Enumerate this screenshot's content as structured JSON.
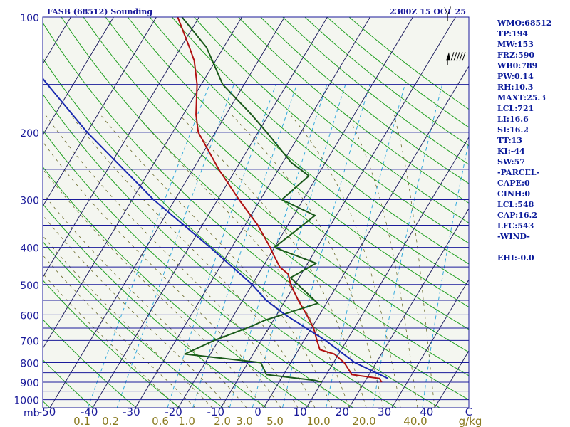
{
  "header": {
    "station_title": "FASB (68512) Sounding",
    "valid_time": "2300Z 15 OCT 25"
  },
  "stats": [
    {
      "label": "WMO:68512"
    },
    {
      "label": "TP:194"
    },
    {
      "label": "MW:153"
    },
    {
      "label": "FRZ:590"
    },
    {
      "label": "WB0:789"
    },
    {
      "label": "PW:0.14"
    },
    {
      "label": "RH:10.3"
    },
    {
      "label": "MAXT:25.3"
    },
    {
      "label": "LCL:721"
    },
    {
      "label": "LI:16.6"
    },
    {
      "label": "SI:16.2"
    },
    {
      "label": "TT:13"
    },
    {
      "label": "KI:-44"
    },
    {
      "label": "SW:57"
    },
    {
      "label": "-PARCEL-"
    },
    {
      "label": "CAPE:0"
    },
    {
      "label": "CINH:0"
    },
    {
      "label": "LCL:548"
    },
    {
      "label": "CAP:16.2"
    },
    {
      "label": "LFC:543"
    },
    {
      "label": "-WIND-"
    },
    {
      "label": ""
    },
    {
      "label": "EHI:-0.0"
    }
  ],
  "colors": {
    "background": "#f4f6f0",
    "isobar": "#1a1a9a",
    "isotherm": "#202060",
    "dry_adiabat": "#22a022",
    "moist_adiabat": "#6a6a2a",
    "mixing_ratio": "#33aadd",
    "temperature": "#b01010",
    "dewpoint": "#1a5a1a",
    "parcel": "#1a2ab0",
    "axis_text": "#1a1a9a",
    "mixing_text": "#8a7a20"
  },
  "chart_data": {
    "type": "line",
    "skew_t": true,
    "ylabel": "mb",
    "ylim": [
      1050,
      100
    ],
    "y_scale": "log",
    "xlim": [
      -50,
      50
    ],
    "pressure_ticks": [
      "100",
      "200",
      "300",
      "400",
      "500",
      "600",
      "700",
      "800",
      "900",
      "1000"
    ],
    "temperature_ticks": [
      "-50",
      "-40",
      "-30",
      "-20",
      "-10",
      "0",
      "10",
      "20",
      "30",
      "40",
      "C"
    ],
    "mixing_ratio_unit": "g/kg",
    "mixing_ratio_ticks": [
      {
        "label": "0.1",
        "value": 0.1
      },
      {
        "label": "0.2",
        "value": 0.2
      },
      {
        "label": "0.6",
        "value": 0.6
      },
      {
        "label": "1.0",
        "value": 1.0
      },
      {
        "label": "2.0",
        "value": 2.0
      },
      {
        "label": "3.0",
        "value": 3.0
      },
      {
        "label": "5.0",
        "value": 5.0
      },
      {
        "label": "10.0",
        "value": 10.0
      },
      {
        "label": "20.0",
        "value": 20.0
      },
      {
        "label": "40.0",
        "value": 40.0
      }
    ],
    "isobars": [
      100,
      150,
      200,
      250,
      300,
      350,
      400,
      450,
      500,
      550,
      600,
      650,
      700,
      750,
      800,
      850,
      900,
      950,
      1000,
      1050
    ],
    "series": [
      {
        "role": "temperature",
        "points": [
          {
            "p": 900,
            "t": 24.0
          },
          {
            "p": 880,
            "t": 23.0
          },
          {
            "p": 860,
            "t": 16.0
          },
          {
            "p": 800,
            "t": 12.5
          },
          {
            "p": 760,
            "t": 9.0
          },
          {
            "p": 740,
            "t": 5.0
          },
          {
            "p": 700,
            "t": 3.0
          },
          {
            "p": 650,
            "t": 0.5
          },
          {
            "p": 600,
            "t": -3.0
          },
          {
            "p": 550,
            "t": -7.0
          },
          {
            "p": 500,
            "t": -11.0
          },
          {
            "p": 470,
            "t": -13.0
          },
          {
            "p": 450,
            "t": -16.0
          },
          {
            "p": 420,
            "t": -19.0
          },
          {
            "p": 400,
            "t": -21.0
          },
          {
            "p": 350,
            "t": -27.0
          },
          {
            "p": 300,
            "t": -35.0
          },
          {
            "p": 250,
            "t": -44.0
          },
          {
            "p": 200,
            "t": -54.0
          },
          {
            "p": 180,
            "t": -57.0
          },
          {
            "p": 150,
            "t": -61.0
          },
          {
            "p": 130,
            "t": -65.0
          },
          {
            "p": 120,
            "t": -68.0
          },
          {
            "p": 100,
            "t": -75.0
          }
        ]
      },
      {
        "role": "dewpoint",
        "points": [
          {
            "p": 900,
            "t": 10.0
          },
          {
            "p": 890,
            "t": 8.0
          },
          {
            "p": 860,
            "t": -4.0
          },
          {
            "p": 800,
            "t": -7.0
          },
          {
            "p": 760,
            "t": -26.0
          },
          {
            "p": 700,
            "t": -21.0
          },
          {
            "p": 640,
            "t": -14.0
          },
          {
            "p": 620,
            "t": -12.0
          },
          {
            "p": 560,
            "t": -2.0
          },
          {
            "p": 480,
            "t": -12.0
          },
          {
            "p": 440,
            "t": -8.0
          },
          {
            "p": 400,
            "t": -20.0
          },
          {
            "p": 330,
            "t": -15.0
          },
          {
            "p": 300,
            "t": -25.0
          },
          {
            "p": 260,
            "t": -22.0
          },
          {
            "p": 240,
            "t": -28.0
          },
          {
            "p": 200,
            "t": -38.0
          },
          {
            "p": 180,
            "t": -44.0
          },
          {
            "p": 150,
            "t": -55.0
          },
          {
            "p": 120,
            "t": -64.0
          },
          {
            "p": 100,
            "t": -74.0
          }
        ]
      },
      {
        "role": "parcel",
        "points": [
          {
            "p": 880,
            "t": 25.0
          },
          {
            "p": 800,
            "t": 15.0
          },
          {
            "p": 700,
            "t": 5.0
          },
          {
            "p": 600,
            "t": -8.0
          },
          {
            "p": 550,
            "t": -14.5
          },
          {
            "p": 500,
            "t": -20.0
          },
          {
            "p": 400,
            "t": -35.0
          },
          {
            "p": 300,
            "t": -55.0
          },
          {
            "p": 200,
            "t": -80.0
          },
          {
            "p": 150,
            "t": -96.0
          },
          {
            "p": 100,
            "t": -118.0
          }
        ]
      }
    ],
    "wind_barbs": [
      {
        "p": 100,
        "kind": "flag"
      },
      {
        "p": 130,
        "kind": "barbs"
      }
    ]
  }
}
